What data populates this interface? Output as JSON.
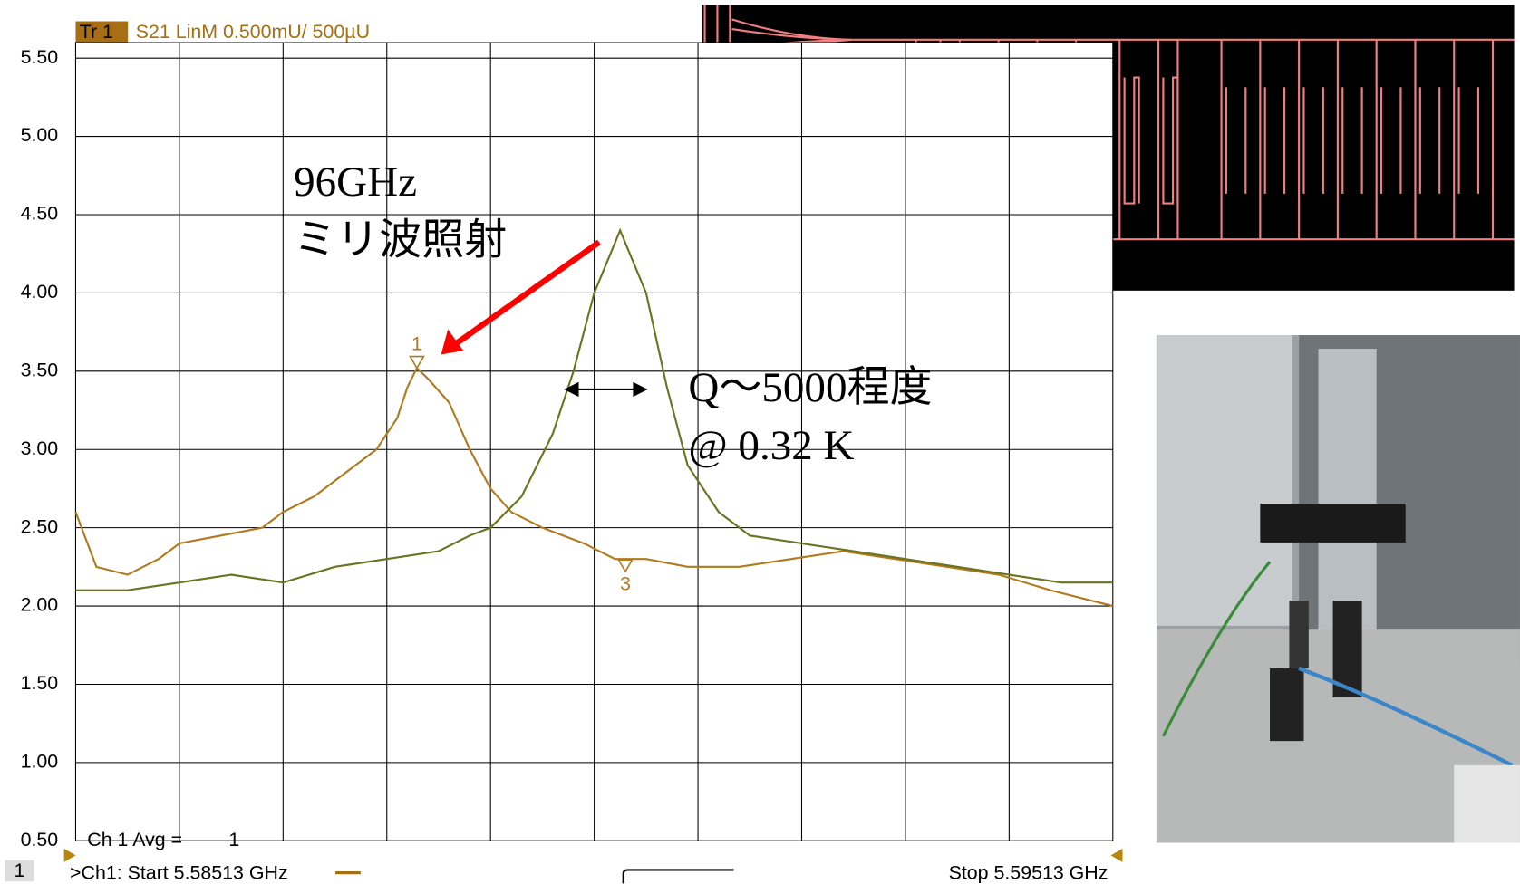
{
  "chart_data": {
    "type": "line",
    "trace_label": "Tr 1",
    "trace_info": "S21 LinM 0.500mU/ 500µU",
    "avg_label": "Ch 1 Avg =",
    "avg_value": 1,
    "channel_number": 1,
    "start_label": ">Ch1: Start 5.58513 GHz",
    "stop_label": "Stop 5.59513 GHz",
    "annotations": [
      "96GHz",
      "ミリ波照射",
      "Q～5000程度",
      "@ 0.32 K"
    ],
    "xlim": [
      5.58513,
      5.59513
    ],
    "ylim": [
      0.5,
      5.5
    ],
    "yticks": [
      {
        "value": 0.5,
        "label": "0.50"
      },
      {
        "value": 1,
        "label": "1.00"
      },
      {
        "value": 1.5,
        "label": "1.50"
      },
      {
        "value": 2,
        "label": "2.00"
      },
      {
        "value": 2.5,
        "label": "2.50"
      },
      {
        "value": 3,
        "label": "3.00"
      },
      {
        "value": 3.5,
        "label": "3.50"
      },
      {
        "value": 4,
        "label": "4.00"
      },
      {
        "value": 4.5,
        "label": "4.50"
      },
      {
        "value": 5,
        "label": "5.00"
      },
      {
        "value": 5.5,
        "label": "5.50"
      }
    ],
    "xgrid_divisions": 10,
    "grid": true,
    "series": [
      {
        "color": "#b07a1e",
        "x": [
          5.58513,
          5.58533,
          5.58563,
          5.58593,
          5.58613,
          5.58653,
          5.58693,
          5.58713,
          5.58743,
          5.58773,
          5.58803,
          5.58823,
          5.58833,
          5.58842,
          5.58853,
          5.58873,
          5.58893,
          5.58913,
          5.58933,
          5.58963,
          5.59003,
          5.59033,
          5.59063,
          5.59103,
          5.59153,
          5.59203,
          5.59253,
          5.59303,
          5.59353,
          5.59403,
          5.59453,
          5.59513
        ],
        "values": [
          2.6,
          2.25,
          2.2,
          2.3,
          2.4,
          2.45,
          2.5,
          2.6,
          2.7,
          2.85,
          3.0,
          3.2,
          3.4,
          3.52,
          3.45,
          3.3,
          3.0,
          2.75,
          2.6,
          2.5,
          2.4,
          2.3,
          2.3,
          2.25,
          2.25,
          2.3,
          2.35,
          2.3,
          2.25,
          2.2,
          2.1,
          2.0
        ]
      },
      {
        "color": "#6b7420",
        "x": [
          5.58513,
          5.58563,
          5.58613,
          5.58663,
          5.58713,
          5.58763,
          5.58813,
          5.58863,
          5.58893,
          5.58913,
          5.58943,
          5.58973,
          5.58993,
          5.59013,
          5.59038,
          5.59063,
          5.59083,
          5.59103,
          5.59133,
          5.59163,
          5.59213,
          5.59263,
          5.59313,
          5.59363,
          5.59413,
          5.59463,
          5.59513
        ],
        "values": [
          2.1,
          2.1,
          2.15,
          2.2,
          2.15,
          2.25,
          2.3,
          2.35,
          2.45,
          2.5,
          2.7,
          3.1,
          3.5,
          4.0,
          4.4,
          4.0,
          3.4,
          2.9,
          2.6,
          2.45,
          2.4,
          2.35,
          2.3,
          2.25,
          2.2,
          2.15,
          2.15
        ]
      }
    ],
    "markers": [
      {
        "label": "1",
        "x": 5.58842,
        "y": 3.52
      },
      {
        "label": "3",
        "x": 5.59043,
        "y": 2.22
      }
    ]
  }
}
